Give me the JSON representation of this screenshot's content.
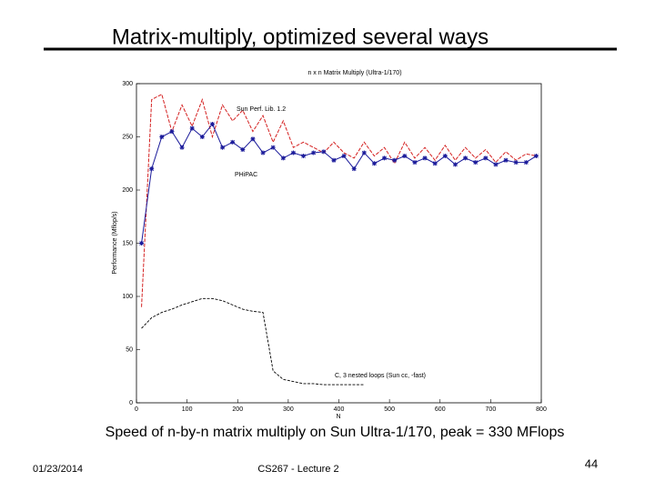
{
  "slide": {
    "title": "Matrix-multiply, optimized several ways",
    "caption": "Speed of n-by-n matrix multiply on Sun Ultra-1/170, peak = 330 MFlops",
    "date": "01/23/2014",
    "footer": "CS267 - Lecture 2",
    "page": "44"
  },
  "chart_data": {
    "type": "line",
    "title": "n x n Matrix Multiply (Ultra-1/170)",
    "x_label": "N",
    "y_label": "Performance (Mflop/s)",
    "x": [
      10,
      30,
      50,
      70,
      90,
      110,
      130,
      150,
      170,
      190,
      210,
      230,
      250,
      270,
      290,
      310,
      330,
      350,
      370,
      390,
      410,
      430,
      450,
      470,
      490,
      510,
      530,
      550,
      570,
      590,
      610,
      630,
      650,
      670,
      690,
      710,
      730,
      750,
      770,
      790
    ],
    "series": [
      {
        "name": "Sun Perf. Lib. 1.2",
        "color": "#d42020",
        "values": [
          90,
          285,
          290,
          255,
          280,
          260,
          285,
          250,
          280,
          265,
          275,
          255,
          270,
          245,
          265,
          240,
          245,
          240,
          235,
          245,
          235,
          230,
          245,
          232,
          240,
          225,
          245,
          230,
          240,
          228,
          242,
          228,
          240,
          230,
          238,
          226,
          236,
          228,
          234,
          232
        ]
      },
      {
        "name": "PHiPAC",
        "color": "#1a1a9a",
        "values": [
          150,
          220,
          250,
          255,
          240,
          258,
          250,
          262,
          240,
          245,
          238,
          248,
          235,
          240,
          230,
          235,
          232,
          235,
          236,
          228,
          232,
          220,
          235,
          225,
          230,
          228,
          232,
          226,
          230,
          225,
          232,
          224,
          230,
          226,
          230,
          224,
          228,
          226,
          226,
          232
        ]
      },
      {
        "name": "C, 3 nested loops (Sun cc, -fast)",
        "color": "#000000",
        "values": [
          70,
          80,
          85,
          88,
          92,
          95,
          98,
          98,
          96,
          92,
          88,
          86,
          85,
          30,
          22,
          20,
          18,
          18,
          17,
          17,
          17,
          17,
          17,
          null,
          null,
          null,
          null,
          null,
          null,
          null,
          null,
          null,
          null,
          null,
          null,
          null,
          null,
          null,
          null,
          null
        ]
      }
    ],
    "xlim": [
      0,
      800
    ],
    "xticks": [
      0,
      100,
      200,
      300,
      400,
      500,
      600,
      700,
      800
    ],
    "ylim": [
      0,
      300
    ],
    "yticks": [
      0,
      50,
      100,
      150,
      200,
      250,
      300
    ],
    "grid": false
  }
}
